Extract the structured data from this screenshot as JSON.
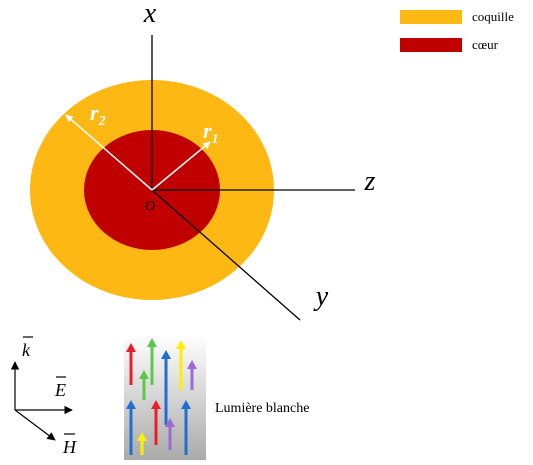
{
  "legend": {
    "items": [
      {
        "label": "coquille",
        "color": "#FDB813"
      },
      {
        "label": "cœur",
        "color": "#C00000"
      }
    ]
  },
  "axes": {
    "x": "x",
    "z": "z",
    "y": "y",
    "origin": "O"
  },
  "radii": {
    "outer": {
      "base": "r",
      "sub": "2"
    },
    "inner": {
      "base": "r",
      "sub": "1"
    }
  },
  "vectors": {
    "k": "k",
    "E": "E",
    "H": "H"
  },
  "light": {
    "label": "Lumière blanche"
  }
}
